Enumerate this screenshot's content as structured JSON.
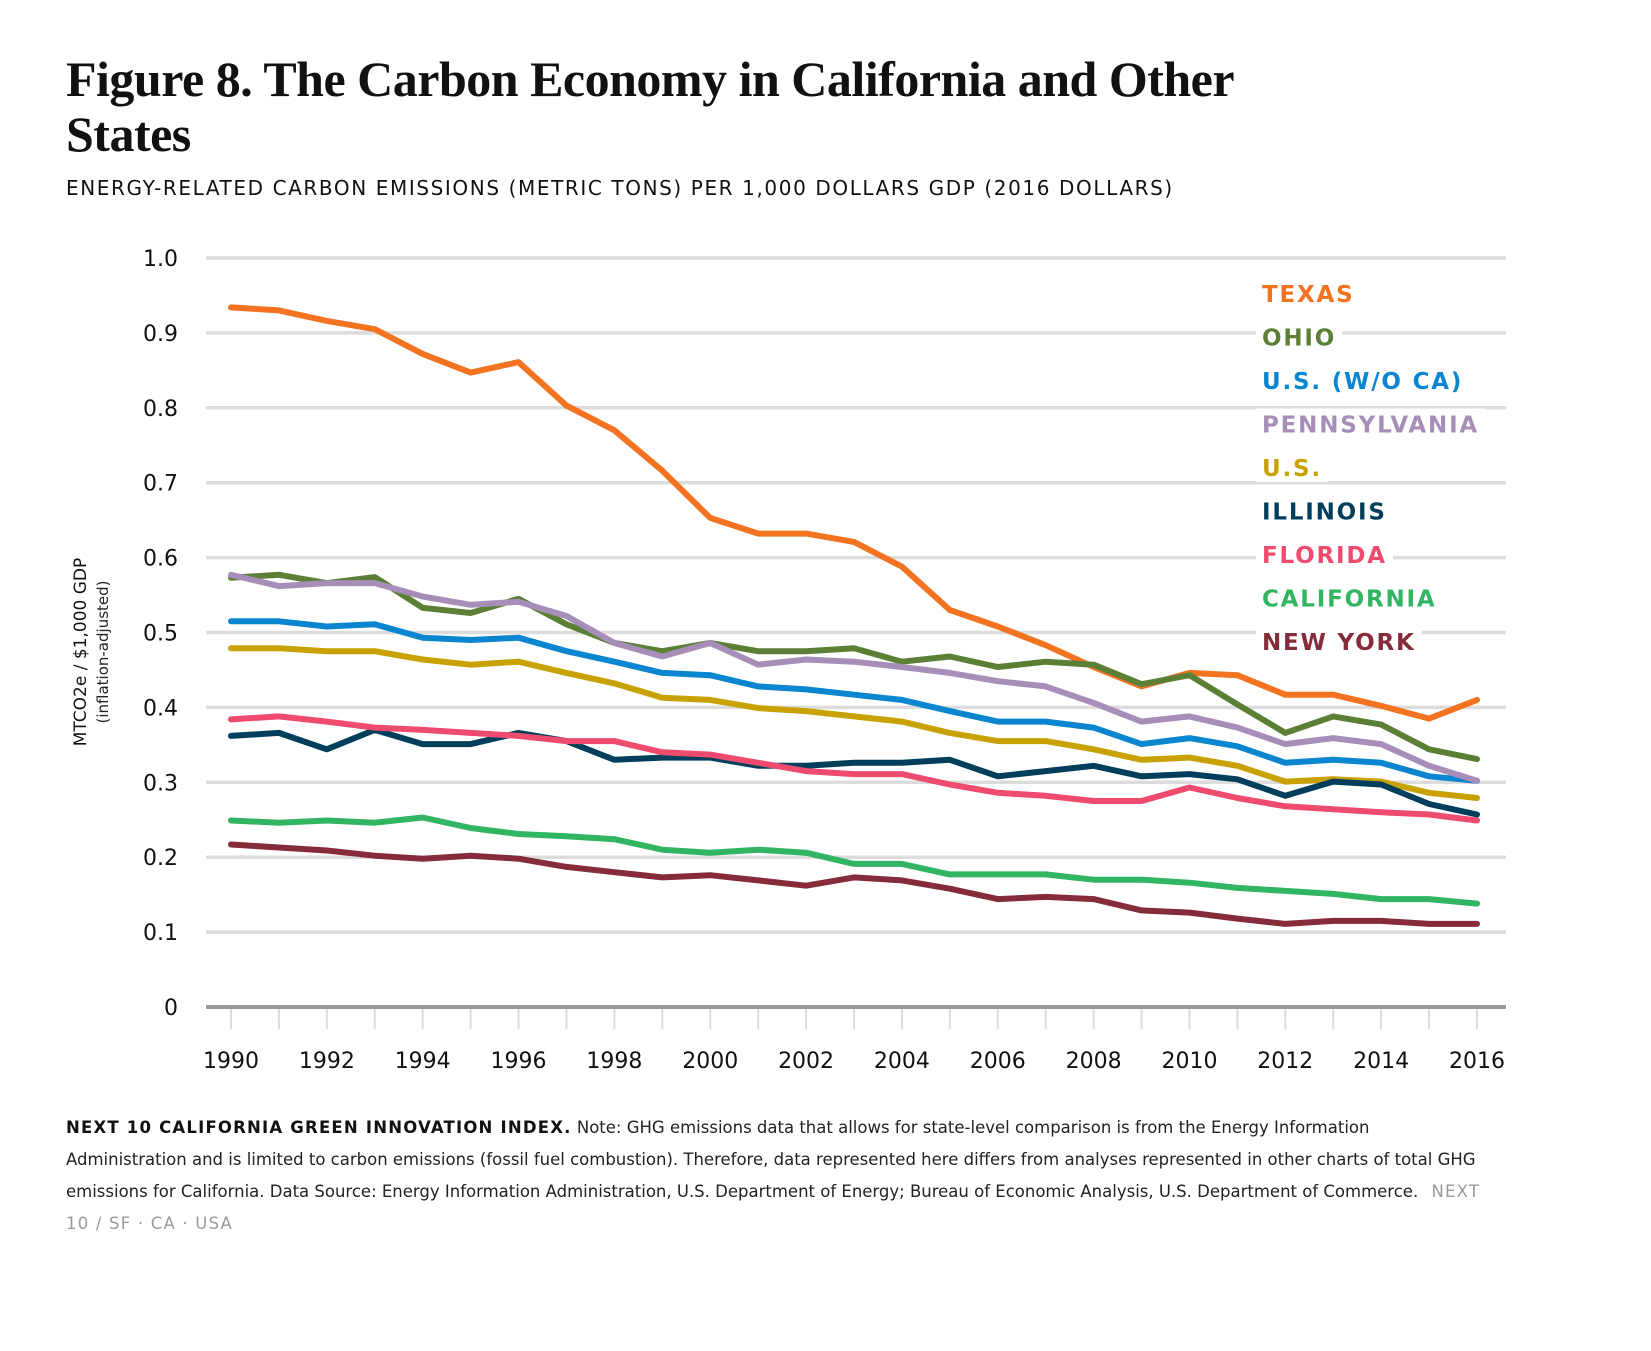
{
  "header": {
    "title": "Figure 8. The Carbon Economy in California and Other States",
    "subtitle": "ENERGY-RELATED CARBON EMISSIONS (METRIC TONS) PER 1,000 DOLLARS GDP (2016 DOLLARS)"
  },
  "footer": {
    "lead": "NEXT 10 CALIFORNIA GREEN INNOVATION INDEX.",
    "note": "Note: GHG emissions data that allows for state-level comparison is from the Energy Information Administration and is limited to carbon emissions (fossil fuel combustion). Therefore, data represented here differs from analyses represented in other charts of total GHG emissions for California. Data Source: Energy Information Administration, U.S. Department of Energy; Bureau of Economic Analysis, U.S. Department of Commerce.",
    "brand": "NEXT 10  /  SF · CA · USA"
  },
  "chart_data": {
    "type": "line",
    "title": "Figure 8. The Carbon Economy in California and Other States",
    "subtitle": "ENERGY-RELATED CARBON EMISSIONS (METRIC TONS) PER 1,000 DOLLARS GDP (2016 DOLLARS)",
    "xlabel": "",
    "ylabel": "MTCO2e / $1,000 GDP",
    "ylabel_sub": "(inflation-adjusted)",
    "ylim": [
      0,
      1.0
    ],
    "xlim": [
      1990,
      2016
    ],
    "grid": true,
    "legend_placement": "top-right",
    "y_ticks": [
      "0",
      "0.1",
      "0.2",
      "0.3",
      "0.4",
      "0.5",
      "0.6",
      "0.7",
      "0.8",
      "0.9",
      "1.0"
    ],
    "x_tick_labels": [
      "1990",
      "1992",
      "1994",
      "1996",
      "1998",
      "2000",
      "2002",
      "2004",
      "2006",
      "2008",
      "2010",
      "2012",
      "2014",
      "2016"
    ],
    "x": [
      1990,
      1991,
      1992,
      1993,
      1994,
      1995,
      1996,
      1997,
      1998,
      1999,
      2000,
      2001,
      2002,
      2003,
      2004,
      2005,
      2006,
      2007,
      2008,
      2009,
      2010,
      2011,
      2012,
      2013,
      2014,
      2015,
      2016
    ],
    "series": [
      {
        "name": "TEXAS",
        "color": "#f37321",
        "values": [
          0.934,
          0.93,
          0.916,
          0.905,
          0.872,
          0.847,
          0.861,
          0.803,
          0.77,
          0.716,
          0.653,
          0.632,
          0.632,
          0.621,
          0.588,
          0.53,
          0.508,
          0.483,
          0.454,
          0.428,
          0.446,
          0.443,
          0.417,
          0.417,
          0.402,
          0.385,
          0.41
        ]
      },
      {
        "name": "OHIO",
        "color": "#5b7f35",
        "values": [
          0.573,
          0.577,
          0.566,
          0.574,
          0.533,
          0.526,
          0.545,
          0.511,
          0.486,
          0.475,
          0.486,
          0.475,
          0.475,
          0.479,
          0.461,
          0.468,
          0.454,
          0.461,
          0.457,
          0.431,
          0.443,
          0.404,
          0.366,
          0.388,
          0.377,
          0.344,
          0.331
        ]
      },
      {
        "name": "U.S. (W/O CA)",
        "color": "#0a85cf",
        "values": [
          0.515,
          0.515,
          0.508,
          0.511,
          0.493,
          0.49,
          0.493,
          0.475,
          0.461,
          0.446,
          0.443,
          0.428,
          0.424,
          0.417,
          0.41,
          0.395,
          0.381,
          0.381,
          0.373,
          0.351,
          0.359,
          0.348,
          0.326,
          0.33,
          0.326,
          0.308,
          0.302
        ]
      },
      {
        "name": "PENNSYLVANIA",
        "color": "#a78eb8",
        "values": [
          0.577,
          0.562,
          0.566,
          0.566,
          0.548,
          0.537,
          0.541,
          0.522,
          0.486,
          0.468,
          0.486,
          0.457,
          0.464,
          0.461,
          0.454,
          0.446,
          0.435,
          0.428,
          0.406,
          0.381,
          0.388,
          0.373,
          0.351,
          0.359,
          0.351,
          0.322,
          0.302
        ]
      },
      {
        "name": "U.S.",
        "color": "#c8a200",
        "values": [
          0.479,
          0.479,
          0.475,
          0.475,
          0.464,
          0.457,
          0.461,
          0.446,
          0.432,
          0.413,
          0.41,
          0.399,
          0.395,
          0.388,
          0.381,
          0.366,
          0.355,
          0.355,
          0.344,
          0.33,
          0.333,
          0.322,
          0.301,
          0.304,
          0.301,
          0.286,
          0.279
        ]
      },
      {
        "name": "ILLINOIS",
        "color": "#003f5c",
        "values": [
          0.362,
          0.366,
          0.344,
          0.37,
          0.351,
          0.351,
          0.366,
          0.355,
          0.33,
          0.333,
          0.333,
          0.322,
          0.322,
          0.326,
          0.326,
          0.33,
          0.308,
          0.315,
          0.322,
          0.308,
          0.311,
          0.304,
          0.282,
          0.301,
          0.297,
          0.271,
          0.257
        ]
      },
      {
        "name": "FLORIDA",
        "color": "#ef4b6e",
        "values": [
          0.384,
          0.388,
          0.381,
          0.373,
          0.37,
          0.366,
          0.362,
          0.355,
          0.355,
          0.34,
          0.337,
          0.326,
          0.315,
          0.311,
          0.311,
          0.297,
          0.286,
          0.282,
          0.275,
          0.275,
          0.293,
          0.279,
          0.268,
          0.264,
          0.26,
          0.257,
          0.249
        ]
      },
      {
        "name": "CALIFORNIA",
        "color": "#32b562",
        "values": [
          0.249,
          0.246,
          0.249,
          0.246,
          0.253,
          0.239,
          0.231,
          0.228,
          0.224,
          0.21,
          0.206,
          0.21,
          0.206,
          0.191,
          0.191,
          0.177,
          0.177,
          0.177,
          0.17,
          0.17,
          0.166,
          0.159,
          0.155,
          0.151,
          0.144,
          0.144,
          0.138
        ]
      },
      {
        "name": "NEW YORK",
        "color": "#862b3a",
        "values": [
          0.217,
          0.213,
          0.209,
          0.202,
          0.198,
          0.202,
          0.198,
          0.187,
          0.18,
          0.173,
          0.176,
          0.169,
          0.162,
          0.173,
          0.169,
          0.158,
          0.144,
          0.147,
          0.144,
          0.129,
          0.126,
          0.118,
          0.111,
          0.115,
          0.115,
          0.111,
          0.111
        ]
      }
    ]
  }
}
